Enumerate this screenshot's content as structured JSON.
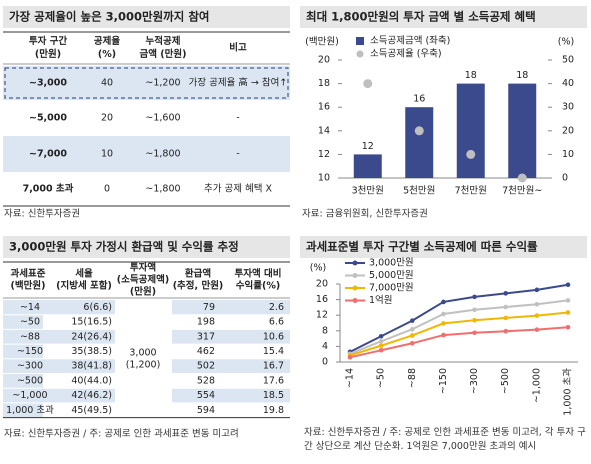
{
  "table1": {
    "title": "가장 공제율이 높은 3,000만원까지 참여",
    "headers": [
      [
        "투자 구간",
        "(만원)"
      ],
      [
        "공제율",
        "(%)"
      ],
      [
        "누적공제",
        "금액 (만원)"
      ],
      [
        "비고"
      ]
    ],
    "rows": [
      [
        "~3,000",
        "40",
        "~1,200",
        "가장 공제율 高 → 참여↑"
      ],
      [
        "~5,000",
        "20",
        "~1,600",
        "-"
      ],
      [
        "~7,000",
        "10",
        "~1,800",
        "-"
      ],
      [
        "7,000 초과",
        "0",
        "~1,800",
        "추가 공제 혜택 X"
      ]
    ],
    "source": "자료: 신한투자증권"
  },
  "table2": {
    "title": "3,000만원 투자 가정시 환급액 및 수익률 추정",
    "headers": [
      [
        "과세표준",
        "(백만원)"
      ],
      [
        "세율",
        "(지방세 포함)"
      ],
      [
        "투자액",
        "(소득공제액)",
        "(만원)"
      ],
      [
        "환급액",
        "(추정, 만원)"
      ],
      [
        "투자액 대비",
        "수익률(%)"
      ]
    ],
    "merged": [
      "3,000",
      "(1,200)"
    ],
    "rows": [
      [
        "~14",
        "6(6.6)",
        "79",
        "2.6"
      ],
      [
        "~50",
        "15(16.5)",
        "198",
        "6.6"
      ],
      [
        "~88",
        "24(26.4)",
        "317",
        "10.6"
      ],
      [
        "~150",
        "35(38.5)",
        "462",
        "15.4"
      ],
      [
        "~300",
        "38(41.8)",
        "502",
        "16.7"
      ],
      [
        "~500",
        "40(44.0)",
        "528",
        "17.6"
      ],
      [
        "~1,000",
        "42(46.2)",
        "554",
        "18.5"
      ],
      [
        "1,000 초과",
        "45(49.5)",
        "594",
        "19.8"
      ]
    ],
    "source": "자료: 신한투자증권 / 주: 공제로 인한 과세표준 변동 미고려"
  },
  "chart_data": [
    {
      "type": "bar",
      "title": "최대 1,800만원의 투자 금액 별 소득공제 혜택",
      "y_label": "(백만원)",
      "y2_label": "(%)",
      "categories": [
        "3천만원",
        "5천만원",
        "7천만원",
        "7천만원~"
      ],
      "series": [
        {
          "name": "소득공제금액 (좌축)",
          "color": "#3b4a8c",
          "values": [
            12,
            16,
            18,
            18
          ]
        },
        {
          "name": "소득공제율 (우축)",
          "color": "#bfbfbf",
          "values": [
            40,
            20,
            10,
            0
          ],
          "axis": "y2"
        }
      ],
      "ylim": [
        10,
        20
      ],
      "yticks": [
        10,
        12,
        14,
        16,
        18,
        20
      ],
      "y2lim": [
        0,
        50
      ],
      "y2ticks": [
        0,
        10,
        20,
        30,
        40,
        50
      ],
      "source": "자료: 금융위원회, 신한투자증권"
    },
    {
      "type": "line",
      "title": "과세표준별 투자 구간별 소득공제에 따른 수익률",
      "y_label": "(%)",
      "categories": [
        "~14",
        "~50",
        "~88",
        "~150",
        "~300",
        "~500",
        "~1,000",
        "1,000 초과"
      ],
      "series": [
        {
          "name": "3,000만원",
          "color": "#3b4a8c",
          "values": [
            2.6,
            6.6,
            10.6,
            15.4,
            16.7,
            17.6,
            18.5,
            19.8
          ]
        },
        {
          "name": "5,000만원",
          "color": "#c0c0c0",
          "values": [
            2.1,
            5.3,
            8.4,
            12.3,
            13.4,
            14.1,
            14.8,
            15.8
          ]
        },
        {
          "name": "7,000만원",
          "color": "#f2b705",
          "values": [
            1.7,
            4.2,
            6.8,
            9.9,
            10.7,
            11.3,
            11.9,
            12.7
          ]
        },
        {
          "name": "1억원",
          "color": "#f26d6d",
          "values": [
            1.2,
            3.0,
            4.8,
            6.9,
            7.5,
            7.9,
            8.3,
            8.9
          ]
        }
      ],
      "ylim": [
        0,
        20
      ],
      "yticks": [
        0,
        4,
        8,
        12,
        16,
        20
      ],
      "source": "자료: 신한투자증권 / 주: 공제로 인한 과세표준 변동 미고려, 각 투자 구간 상단으로 계산 단순화. 1억원은 7,000만원 초과의 예시"
    }
  ]
}
